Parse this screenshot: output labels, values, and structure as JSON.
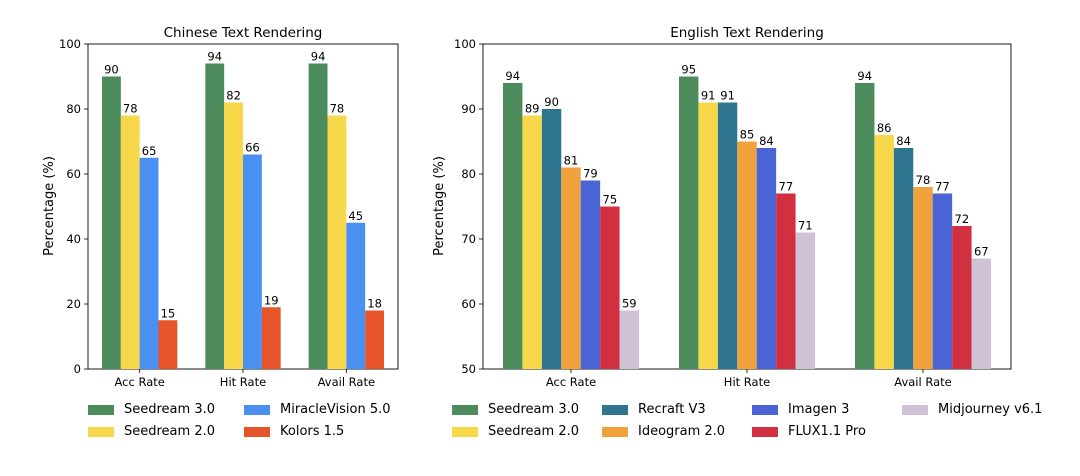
{
  "chart_data": [
    {
      "type": "bar",
      "title": "Chinese Text Rendering",
      "xlabel": "",
      "ylabel": "Percentage (%)",
      "ylim": [
        0,
        100
      ],
      "yticks": [
        "0",
        "20",
        "40",
        "60",
        "80",
        "100"
      ],
      "categories": [
        "Acc Rate",
        "Hit Rate",
        "Avail Rate"
      ],
      "legend_position": "bottom",
      "series": [
        {
          "name": "Seedream 3.0",
          "color": "#4b8b5c",
          "values": [
            90,
            94,
            94
          ]
        },
        {
          "name": "Seedream 2.0",
          "color": "#f6d84a",
          "values": [
            78,
            82,
            78
          ]
        },
        {
          "name": "MiracleVision 5.0",
          "color": "#4a90f0",
          "values": [
            65,
            66,
            45
          ]
        },
        {
          "name": "Kolors 1.5",
          "color": "#e8542a",
          "values": [
            15,
            19,
            18
          ]
        }
      ]
    },
    {
      "type": "bar",
      "title": "English Text Rendering",
      "xlabel": "",
      "ylabel": "Percentage (%)",
      "ylim": [
        50,
        100
      ],
      "yticks": [
        "50",
        "60",
        "70",
        "80",
        "90",
        "100"
      ],
      "categories": [
        "Acc Rate",
        "Hit Rate",
        "Avail Rate"
      ],
      "legend_position": "bottom",
      "series": [
        {
          "name": "Seedream 3.0",
          "color": "#4b8b5c",
          "values": [
            94,
            95,
            94
          ]
        },
        {
          "name": "Seedream 2.0",
          "color": "#f6d84a",
          "values": [
            89,
            91,
            86
          ]
        },
        {
          "name": "Recraft V3",
          "color": "#2f7590",
          "values": [
            90,
            91,
            84
          ]
        },
        {
          "name": "Ideogram 2.0",
          "color": "#f0a23c",
          "values": [
            81,
            85,
            78
          ]
        },
        {
          "name": "Imagen 3",
          "color": "#4a64d6",
          "values": [
            79,
            84,
            77
          ]
        },
        {
          "name": "FLUX1.1 Pro",
          "color": "#d03040",
          "values": [
            75,
            77,
            72
          ]
        },
        {
          "name": "Midjourney v6.1",
          "color": "#d0c2d6",
          "values": [
            59,
            71,
            67
          ]
        }
      ]
    }
  ]
}
